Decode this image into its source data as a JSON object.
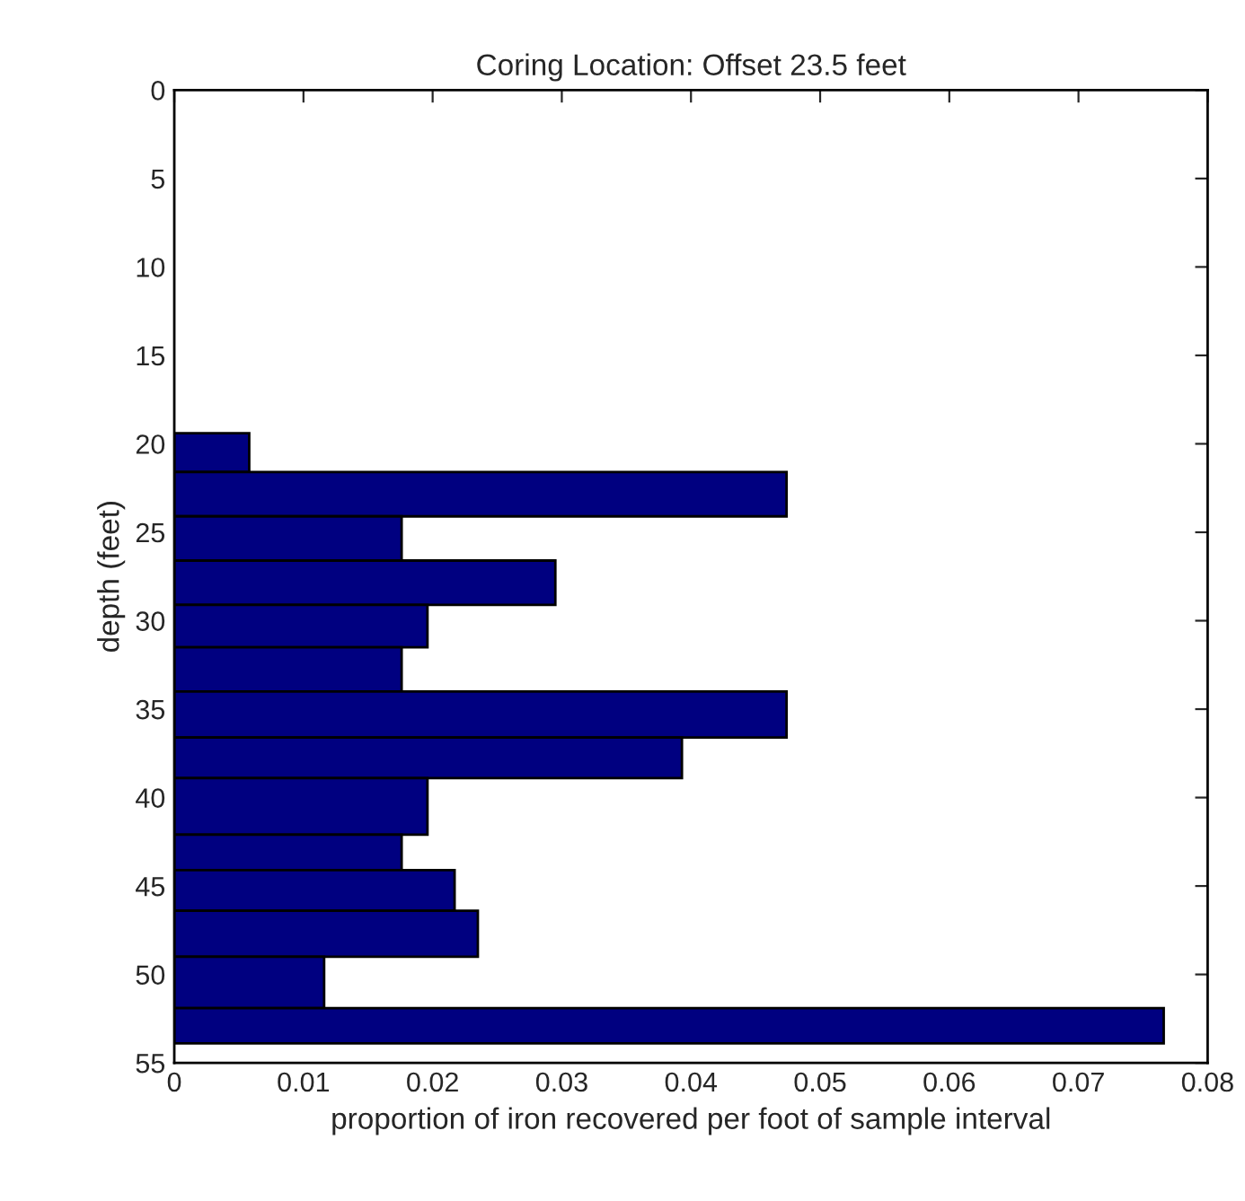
{
  "chart_data": {
    "type": "histogram",
    "orientation": "horizontal",
    "title": "Coring Location: Offset 23.5 feet",
    "xlabel": "proportion of iron recovered per foot of sample interval",
    "ylabel": "depth (feet)",
    "bins": [
      19.4,
      21.6,
      24.1,
      26.6,
      29.1,
      31.5,
      34.0,
      36.6,
      38.9,
      42.1,
      44.1,
      46.4,
      49.0,
      51.9,
      53.9
    ],
    "values": [
      0.0058,
      0.0474,
      0.0176,
      0.0295,
      0.0196,
      0.0176,
      0.0474,
      0.0393,
      0.0196,
      0.0176,
      0.0217,
      0.0235,
      0.0116,
      0.0766
    ],
    "color": "#000080",
    "xlim": [
      0,
      0.08
    ],
    "xticks": [
      0,
      0.01,
      0.02,
      0.03,
      0.04,
      0.05,
      0.06,
      0.07,
      0.08
    ],
    "ylim": [
      55,
      0
    ],
    "yticks": [
      0,
      5,
      10,
      15,
      20,
      25,
      30,
      35,
      40,
      45,
      50,
      55
    ],
    "grid": false,
    "legend": false
  }
}
